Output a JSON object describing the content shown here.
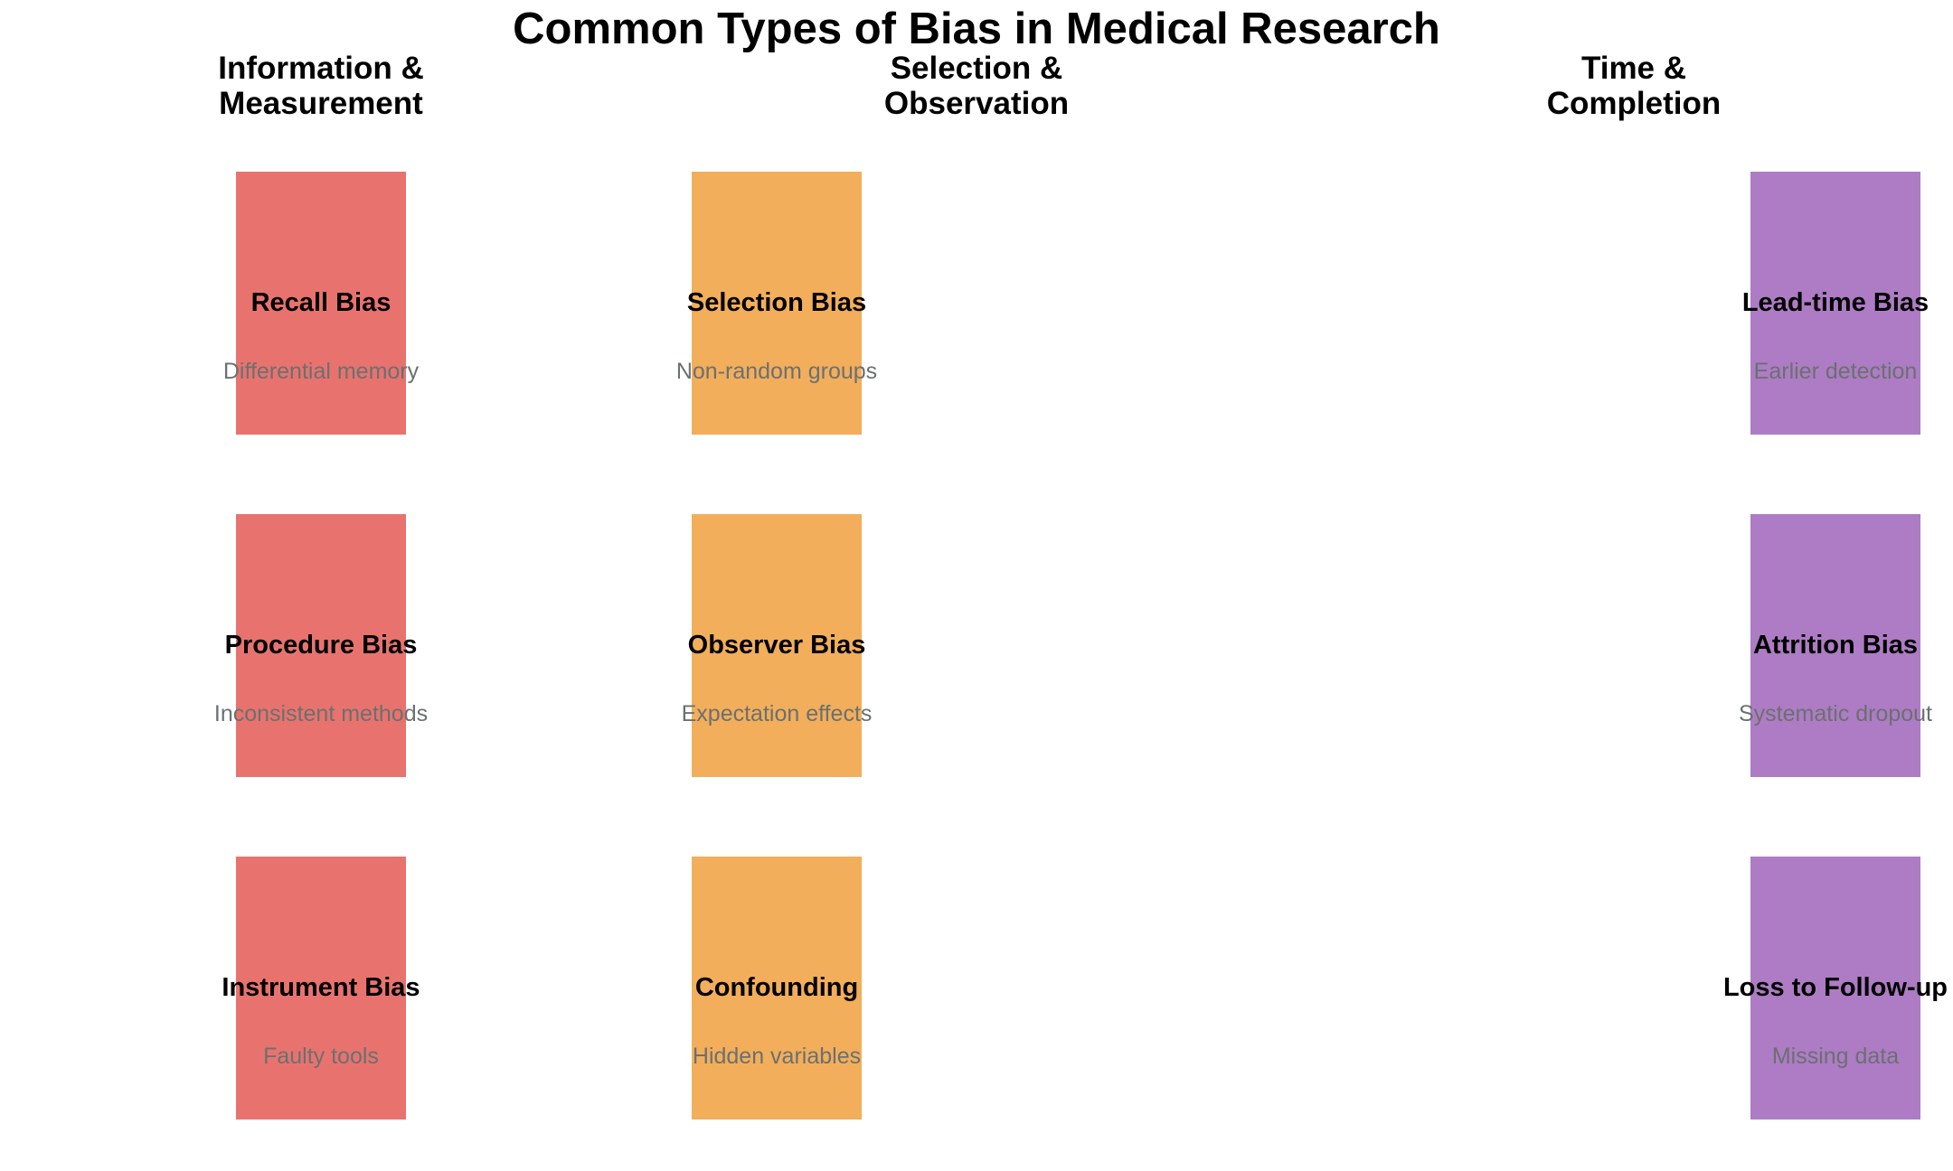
{
  "title": "Common Types of Bias in Medical Research",
  "columns": [
    {
      "header_lines": [
        "Information &",
        "Measurement"
      ],
      "color": "#e8736e",
      "items": [
        {
          "name": "Recall Bias",
          "desc": "Differential memory"
        },
        {
          "name": "Procedure Bias",
          "desc": "Inconsistent methods"
        },
        {
          "name": "Instrument Bias",
          "desc": "Faulty tools"
        }
      ]
    },
    {
      "header_lines": [
        "Selection &",
        "Observation"
      ],
      "color": "#f2ae5b",
      "items": [
        {
          "name": "Selection Bias",
          "desc": "Non-random groups"
        },
        {
          "name": "Observer Bias",
          "desc": "Expectation effects"
        },
        {
          "name": "Confounding",
          "desc": "Hidden variables"
        }
      ]
    },
    {
      "header_lines": [
        "Time &",
        "Completion"
      ],
      "color": "#ad7cc4",
      "items": [
        {
          "name": "Lead-time Bias",
          "desc": "Earlier detection"
        },
        {
          "name": "Attrition Bias",
          "desc": "Systematic dropout"
        },
        {
          "name": "Loss to Follow-up",
          "desc": "Missing data"
        }
      ]
    }
  ]
}
